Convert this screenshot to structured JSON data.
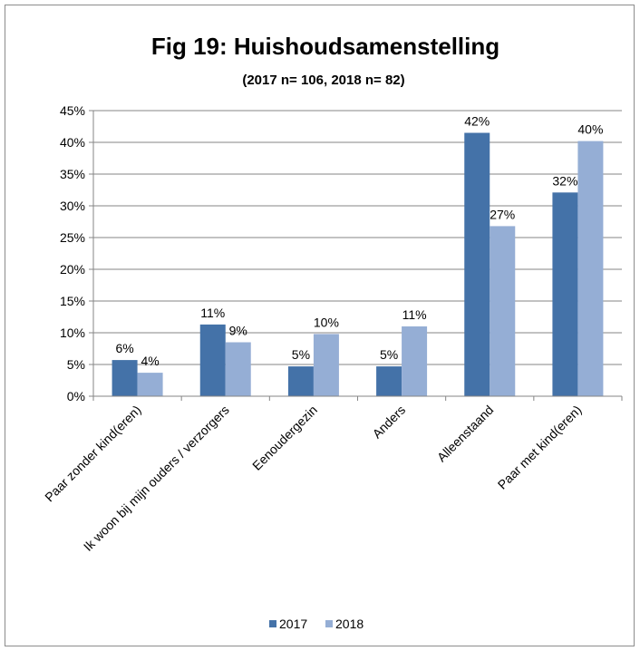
{
  "chart_data": {
    "type": "bar",
    "title": "Fig 19: Huishoudsamenstelling",
    "subtitle": "(2017 n= 106, 2018 n= 82)",
    "xlabel": "",
    "ylabel": "",
    "ylim": [
      0,
      45
    ],
    "yticks": [
      "0%",
      "5%",
      "10%",
      "15%",
      "20%",
      "25%",
      "30%",
      "35%",
      "40%",
      "45%"
    ],
    "grid": true,
    "legend_position": "bottom",
    "categories": [
      "Paar zonder kind(eren)",
      "Ik woon bij mijn ouders / verzorgers",
      "Eenoudergezin",
      "Anders",
      "Alleenstaand",
      "Paar met kind(eren)"
    ],
    "series": [
      {
        "name": "2017",
        "color": "#4472a8",
        "values": [
          5.7,
          11.3,
          4.7,
          4.7,
          41.5,
          32.1
        ],
        "labels": [
          "6%",
          "11%",
          "5%",
          "5%",
          "42%",
          "32%"
        ]
      },
      {
        "name": "2018",
        "color": "#95aed5",
        "values": [
          3.7,
          8.5,
          9.8,
          11.0,
          26.8,
          40.2
        ],
        "labels": [
          "4%",
          "9%",
          "10%",
          "11%",
          "27%",
          "40%"
        ]
      }
    ]
  }
}
